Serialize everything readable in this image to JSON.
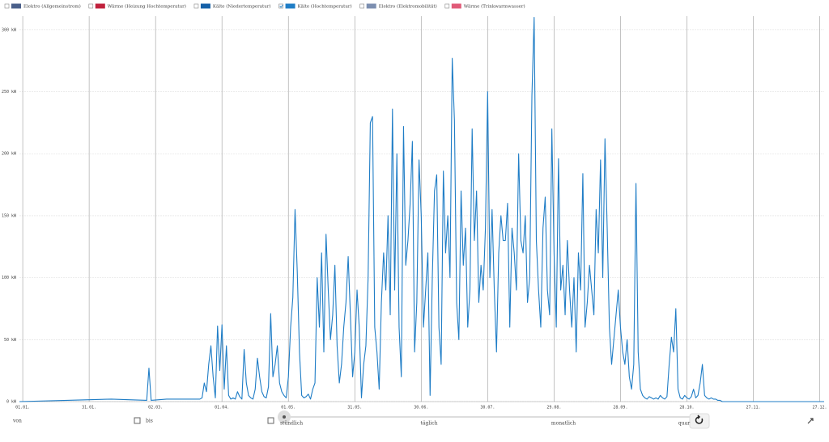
{
  "chart_data": {
    "type": "line",
    "series": [
      {
        "name": "Elektro (Allgemeinstrom)",
        "color": "#4a5f8a",
        "checked": false
      },
      {
        "name": "Wärme (Heizung Hochtemperatur)",
        "color": "#c0203c",
        "checked": false
      },
      {
        "name": "Kälte (Niedertemperatur)",
        "color": "#1560a8",
        "checked": false
      },
      {
        "name": "Kälte (Hochtemperatur)",
        "color": "#1f7dc6",
        "checked": true,
        "values": [
          0,
          1,
          2,
          1,
          27,
          1,
          2,
          2,
          2,
          3,
          15,
          8,
          30,
          45,
          20,
          3,
          61,
          25,
          62,
          10,
          45,
          5,
          2,
          3,
          2,
          8,
          4,
          2,
          42,
          15,
          5,
          3,
          2,
          10,
          35,
          20,
          8,
          4,
          3,
          12,
          71,
          20,
          30,
          45,
          15,
          8,
          5,
          3,
          20,
          60,
          84,
          155,
          105,
          40,
          5,
          3,
          4,
          6,
          2,
          10,
          15,
          100,
          60,
          120,
          40,
          135,
          90,
          50,
          70,
          110,
          45,
          15,
          30,
          60,
          80,
          117,
          70,
          20,
          40,
          90,
          60,
          3,
          30,
          45,
          100,
          225,
          230,
          60,
          40,
          10,
          80,
          120,
          90,
          150,
          70,
          236,
          90,
          200,
          60,
          20,
          222,
          110,
          130,
          160,
          210,
          40,
          80,
          195,
          150,
          60,
          90,
          120,
          5,
          100,
          170,
          183,
          60,
          30,
          186,
          120,
          150,
          100,
          277,
          227,
          80,
          50,
          170,
          110,
          140,
          60,
          90,
          220,
          130,
          170,
          80,
          110,
          90,
          140,
          250,
          100,
          155,
          90,
          40,
          120,
          150,
          130,
          130,
          160,
          60,
          140,
          120,
          90,
          200,
          130,
          120,
          150,
          80,
          100,
          247,
          310,
          130,
          90,
          60,
          140,
          165,
          90,
          70,
          220,
          120,
          60,
          196,
          90,
          110,
          70,
          130,
          90,
          60,
          100,
          40,
          120,
          90,
          184,
          60,
          80,
          110,
          90,
          70,
          155,
          120,
          195,
          100,
          212,
          140,
          60,
          30,
          50,
          70,
          90,
          60,
          40,
          30,
          50,
          20,
          10,
          30,
          176,
          40,
          10,
          5,
          3,
          2,
          4,
          3,
          2,
          3,
          2,
          5,
          3,
          2,
          4,
          30,
          52,
          40,
          75,
          10,
          3,
          2,
          5,
          3,
          2,
          4,
          10,
          3,
          5,
          15,
          30,
          5,
          3,
          2,
          3,
          2,
          2,
          1,
          1,
          0,
          0
        ]
      },
      {
        "name": "Elektro (Elektromobilität)",
        "color": "#7c8fb0",
        "checked": false
      },
      {
        "name": "Wärme (Trinkwarmwasser)",
        "color": "#e05a78",
        "checked": false
      }
    ],
    "x": [
      -1.5,
      20,
      40,
      56,
      57,
      58,
      65,
      79,
      80,
      81,
      82,
      83,
      84,
      85,
      86,
      87,
      88,
      89,
      90,
      91,
      92,
      93,
      94,
      95,
      96,
      97,
      98,
      99,
      100,
      101,
      102,
      103,
      104,
      105,
      106,
      107,
      108,
      109,
      110,
      111,
      112,
      113,
      114,
      115,
      116,
      117,
      118,
      119,
      120,
      121,
      122,
      123,
      124,
      125,
      126,
      127,
      128,
      129,
      130,
      131,
      132,
      133,
      134,
      135,
      136,
      137,
      138,
      139,
      140,
      141,
      142,
      143,
      144,
      145,
      146,
      147,
      148,
      149,
      150,
      151,
      152,
      153,
      154,
      155,
      156,
      157,
      158,
      159,
      160,
      161,
      162,
      163,
      164,
      165,
      166,
      167,
      168,
      169,
      170,
      171,
      172,
      173,
      174,
      175,
      176,
      177,
      178,
      179,
      180,
      181,
      182,
      183,
      184,
      185,
      186,
      187,
      188,
      189,
      190,
      191,
      192,
      193,
      194,
      195,
      196,
      197,
      198,
      199,
      200,
      201,
      202,
      203,
      204,
      205,
      206,
      207,
      208,
      209,
      210,
      211,
      212,
      213,
      214,
      215,
      216,
      217,
      218,
      219,
      220,
      221,
      222,
      223,
      224,
      225,
      226,
      227,
      228,
      229,
      230,
      231,
      232,
      233,
      234,
      235,
      236,
      237,
      238,
      239,
      240,
      241,
      242,
      243,
      244,
      245,
      246,
      247,
      248,
      249,
      250,
      251,
      252,
      253,
      254,
      255,
      256,
      257,
      258,
      259,
      260,
      261,
      262,
      263,
      264,
      265,
      266,
      267,
      268,
      269,
      270,
      271,
      272,
      273,
      274,
      275,
      276,
      277,
      278,
      279,
      280,
      281,
      282,
      283,
      284,
      285,
      286,
      287,
      288,
      289,
      290,
      291,
      292,
      293,
      294,
      295,
      296,
      297,
      298,
      299,
      300,
      301,
      302,
      303,
      304,
      305,
      306,
      307,
      308,
      309,
      310,
      311,
      312,
      313,
      314,
      315,
      316,
      362
    ],
    "xlim": [
      -1.5,
      362
    ],
    "xticks": [
      {
        "value": 0,
        "label": "01.01."
      },
      {
        "value": 30,
        "label": "31.01."
      },
      {
        "value": 60,
        "label": "02.03."
      },
      {
        "value": 90,
        "label": "01.04."
      },
      {
        "value": 120,
        "label": "01.05."
      },
      {
        "value": 150,
        "label": "31.05."
      },
      {
        "value": 180,
        "label": "30.06."
      },
      {
        "value": 210,
        "label": "30.07."
      },
      {
        "value": 240,
        "label": "29.08."
      },
      {
        "value": 270,
        "label": "28.09."
      },
      {
        "value": 300,
        "label": "28.10."
      },
      {
        "value": 330,
        "label": "27.11."
      },
      {
        "value": 360,
        "label": "27.12."
      }
    ],
    "ylim": [
      0,
      311
    ],
    "yticks": [
      {
        "value": 0,
        "label": "0 kW"
      },
      {
        "value": 50,
        "label": "50 kW"
      },
      {
        "value": 100,
        "label": "100 kW"
      },
      {
        "value": 150,
        "label": "150 kW"
      },
      {
        "value": 200,
        "label": "200 kW"
      },
      {
        "value": 250,
        "label": "250 kW"
      },
      {
        "value": 300,
        "label": "300 kW"
      }
    ],
    "grid": true
  },
  "controls": {
    "from": "von",
    "to": "bis",
    "resolutions": [
      "stündlich",
      "täglich",
      "monatlich",
      "quar"
    ]
  }
}
